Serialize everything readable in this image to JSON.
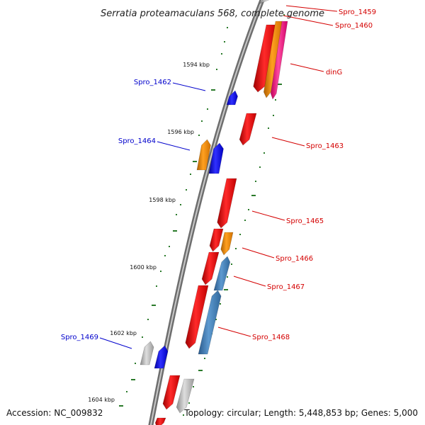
{
  "title": "Serratia proteamaculans 568, complete genome",
  "footer": {
    "accession": "Accession: NC_009832",
    "topology": "Topology: circular; Length: 5,448,853 bp; Genes: 5,000"
  },
  "colors": {
    "backbone": "#888888",
    "tick": "#2a7a2a",
    "forward_label": "#d40000",
    "reverse_label": "#0000cc",
    "red": "#e81010",
    "orange": "#f08a00",
    "pink": "#ff2a8c",
    "blue": "#1414ee",
    "steel": "#3c7ab4",
    "gray": "#b4b4b4"
  },
  "kbp_markers": [
    "1594 kbp",
    "1596 kbp",
    "1598 kbp",
    "1600 kbp",
    "1602 kbp",
    "1604 kbp"
  ],
  "gene_labels": [
    {
      "id": "Spro_1459",
      "strand": "forward"
    },
    {
      "id": "Spro_1460",
      "strand": "forward"
    },
    {
      "id": "dinG",
      "strand": "forward"
    },
    {
      "id": "Spro_1462",
      "strand": "reverse"
    },
    {
      "id": "Spro_1463",
      "strand": "forward"
    },
    {
      "id": "Spro_1464",
      "strand": "reverse"
    },
    {
      "id": "Spro_1465",
      "strand": "forward"
    },
    {
      "id": "Spro_1466",
      "strand": "forward"
    },
    {
      "id": "Spro_1467",
      "strand": "forward"
    },
    {
      "id": "Spro_1468",
      "strand": "forward"
    },
    {
      "id": "Spro_1469",
      "strand": "reverse"
    }
  ]
}
